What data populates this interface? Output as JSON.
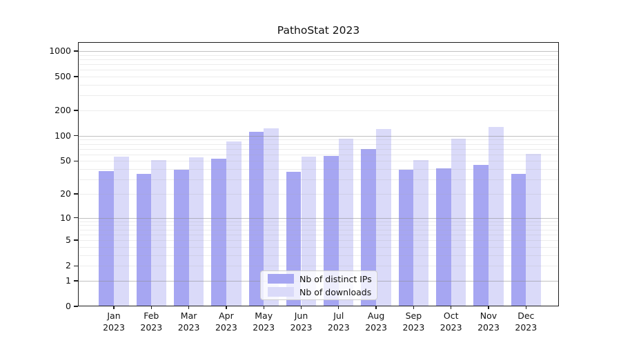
{
  "chart_data": {
    "type": "bar",
    "title": "PathoStat 2023",
    "categories": [
      "Jan 2023",
      "Feb 2023",
      "Mar 2023",
      "Apr 2023",
      "May 2023",
      "Jun 2023",
      "Jul 2023",
      "Aug 2023",
      "Sep 2023",
      "Oct 2023",
      "Nov 2023",
      "Dec 2023"
    ],
    "series": [
      {
        "name": "Nb of distinct IPs",
        "values": [
          38,
          35,
          39,
          53,
          112,
          37,
          58,
          69,
          39,
          41,
          45,
          35
        ],
        "color": "#a6a6f2"
      },
      {
        "name": "Nb of downloads",
        "values": [
          57,
          51,
          55,
          85,
          123,
          56,
          93,
          120,
          51,
          93,
          127,
          61
        ],
        "color": "#dadaf9"
      }
    ],
    "y_scale": "log1p",
    "y_ticks": [
      0,
      1,
      2,
      5,
      10,
      20,
      50,
      100,
      200,
      500,
      1000
    ],
    "ylim": [
      0,
      1275
    ],
    "xlabel": "",
    "ylabel": "",
    "grid": true,
    "legend_position": "lower center"
  },
  "colors": {
    "accent_dark_bar": "#a6a6f2",
    "accent_light_bar": "#dadaf9",
    "grid_major": "#8c8c8c",
    "grid_minor": "#d9d9d9",
    "spine": "#1c1c1c",
    "background": "#ffffff"
  }
}
